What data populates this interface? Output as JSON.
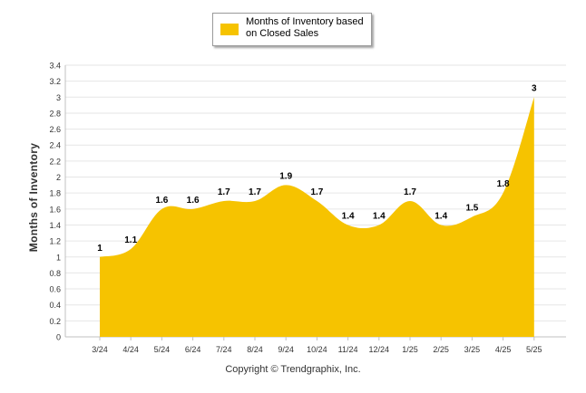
{
  "chart_data": {
    "type": "area",
    "categories": [
      "3/24",
      "4/24",
      "5/24",
      "6/24",
      "7/24",
      "8/24",
      "9/24",
      "10/24",
      "11/24",
      "12/24",
      "1/25",
      "2/25",
      "3/25",
      "4/25",
      "5/25"
    ],
    "series": [
      {
        "name": "Months of Inventory based on Closed Sales",
        "values": [
          1,
          1.1,
          1.6,
          1.6,
          1.7,
          1.7,
          1.9,
          1.7,
          1.4,
          1.4,
          1.7,
          1.4,
          1.5,
          1.8,
          3
        ]
      }
    ],
    "ylabel": "Months of Inventory",
    "xlabel": "",
    "ylim": [
      0,
      3.4
    ],
    "yticks": [
      "0",
      "0.2",
      "0.4",
      "0.6",
      "0.8",
      "1",
      "1.2",
      "1.4",
      "1.6",
      "1.8",
      "2",
      "2.2",
      "2.4",
      "2.6",
      "2.8",
      "3",
      "3.2",
      "3.4"
    ],
    "grid": true,
    "legend_position": "top-center",
    "data_labels": [
      "1",
      "1.1",
      "1.6",
      "1.6",
      "1.7",
      "1.7",
      "1.9",
      "1.7",
      "1.4",
      "1.4",
      "1.7",
      "1.4",
      "1.5",
      "1.8",
      "3"
    ]
  },
  "legend": {
    "label": "Months of Inventory based on Closed Sales"
  },
  "footer": {
    "copyright": "Copyright © Trendgraphix, Inc."
  },
  "colors": {
    "series": "#f6c300",
    "grid": "#e6e6e6",
    "axis": "#c0c0c0"
  }
}
